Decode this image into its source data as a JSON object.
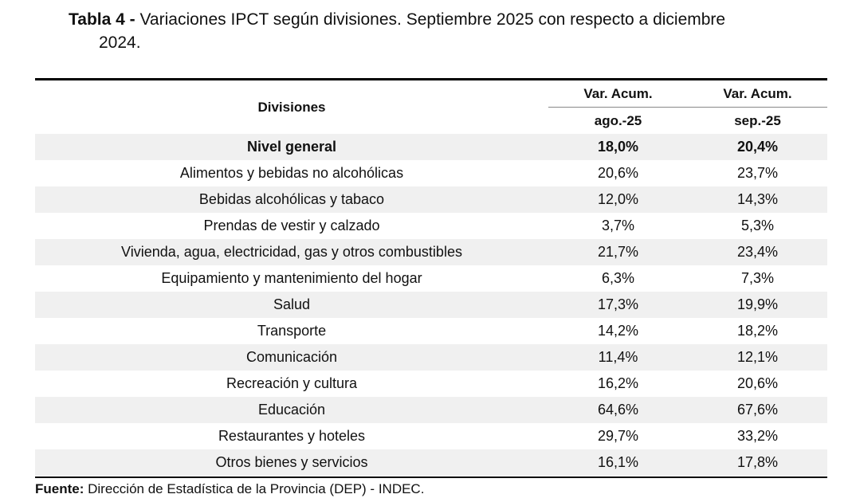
{
  "title": {
    "label": "Tabla 4 -",
    "line1": "Variaciones IPCT según divisiones. Septiembre 2025 con respecto a diciembre",
    "line2": "2024."
  },
  "table": {
    "col_divisiones": "Divisiones",
    "col2_top": "Var. Acum.",
    "col3_top": "Var. Acum.",
    "col2_sub": "ago.-25",
    "col3_sub": "sep.-25",
    "rows": [
      {
        "division": "Nivel general",
        "ago": "18,0%",
        "sep": "20,4%"
      },
      {
        "division": "Alimentos y bebidas no alcohólicas",
        "ago": "20,6%",
        "sep": "23,7%"
      },
      {
        "division": "Bebidas alcohólicas y tabaco",
        "ago": "12,0%",
        "sep": "14,3%"
      },
      {
        "division": "Prendas de vestir y calzado",
        "ago": "3,7%",
        "sep": "5,3%"
      },
      {
        "division": "Vivienda, agua, electricidad, gas y otros combustibles",
        "ago": "21,7%",
        "sep": "23,4%"
      },
      {
        "division": "Equipamiento y mantenimiento del hogar",
        "ago": "6,3%",
        "sep": "7,3%"
      },
      {
        "division": "Salud",
        "ago": "17,3%",
        "sep": "19,9%"
      },
      {
        "division": "Transporte",
        "ago": "14,2%",
        "sep": "18,2%"
      },
      {
        "division": "Comunicación",
        "ago": "11,4%",
        "sep": "12,1%"
      },
      {
        "division": "Recreación y cultura",
        "ago": "16,2%",
        "sep": "20,6%"
      },
      {
        "division": "Educación",
        "ago": "64,6%",
        "sep": "67,6%"
      },
      {
        "division": "Restaurantes y hoteles",
        "ago": "29,7%",
        "sep": "33,2%"
      },
      {
        "division": "Otros bienes y servicios",
        "ago": "16,1%",
        "sep": "17,8%"
      }
    ]
  },
  "source": {
    "label": "Fuente:",
    "text": "Dirección de Estadística de la Provincia (DEP) - INDEC."
  }
}
